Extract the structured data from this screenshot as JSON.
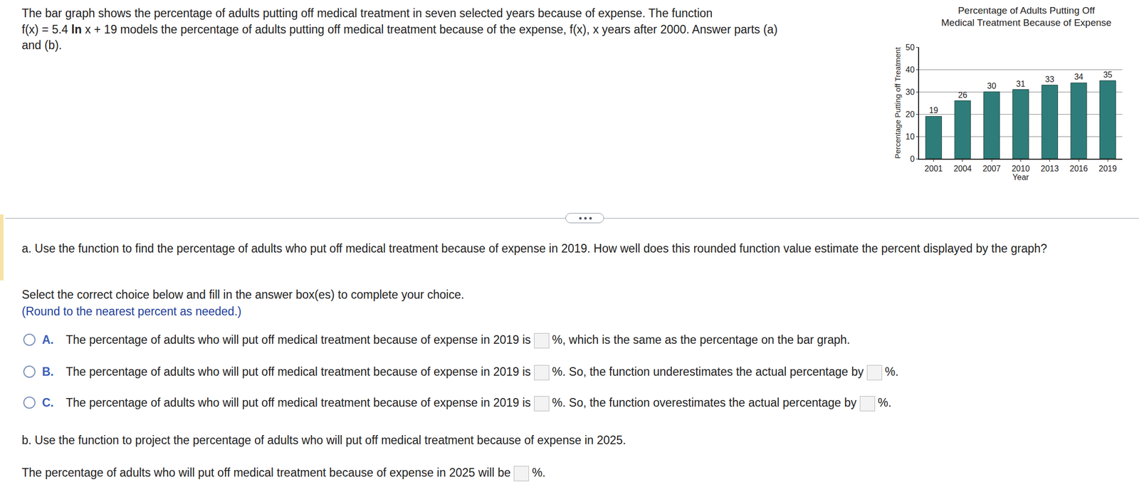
{
  "intro": [
    [
      {
        "text": "The bar graph shows the percentage of adults putting off medical treatment in seven selected years because of expense. The function"
      }
    ],
    [
      {
        "text": "f(x) = 5.4 "
      },
      {
        "text": "ln",
        "bold": true
      },
      {
        "text": " x + 19 models the percentage of adults putting off medical treatment because of the expense, f(x), x years after 2000. Answer parts (a)"
      }
    ],
    [
      {
        "text": "and (b)."
      }
    ]
  ],
  "chart_data": {
    "type": "bar",
    "title": [
      "Percentage of Adults Putting Off",
      "Medical Treatment Because of Expense"
    ],
    "xlabel": "Year",
    "ylabel": "Percentage Putting off Treatment",
    "categories": [
      "2001",
      "2004",
      "2007",
      "2010",
      "2013",
      "2016",
      "2019"
    ],
    "values": [
      19,
      26,
      30,
      31,
      33,
      34,
      35
    ],
    "color": "#2e7d7a",
    "ylim": [
      0,
      50
    ],
    "yticks": [
      0,
      10,
      20,
      30,
      40,
      50
    ],
    "grid": true,
    "data_labels": true
  },
  "part_a": {
    "question": "a. Use the function to find the percentage of adults who put off medical treatment because of expense in 2019. How well does this rounded function value estimate the percent displayed by the graph?",
    "instruction": "Select the correct choice below and fill in the answer box(es) to complete your choice.",
    "hint": "(Round to the nearest percent as needed.)",
    "choices": [
      {
        "label": "A.",
        "parts": [
          "The percentage of adults who will put off medical treatment because of expense in 2019 is",
          "%, which is the same as the percentage on the bar graph."
        ]
      },
      {
        "label": "B.",
        "parts": [
          "The percentage of adults who will put off medical treatment because of expense in 2019 is",
          "%. So, the function underestimates the actual percentage by",
          "%."
        ]
      },
      {
        "label": "C.",
        "parts": [
          "The percentage of adults who will put off medical treatment because of expense in 2019 is",
          "%. So, the function overestimates the actual percentage by",
          "%."
        ]
      }
    ]
  },
  "part_b": {
    "question": "b. Use the function to project the percentage of adults who will put off medical treatment because of expense in 2025.",
    "answer": [
      "The percentage of adults who will put off medical treatment because of expense in 2025 will be",
      "%."
    ]
  }
}
